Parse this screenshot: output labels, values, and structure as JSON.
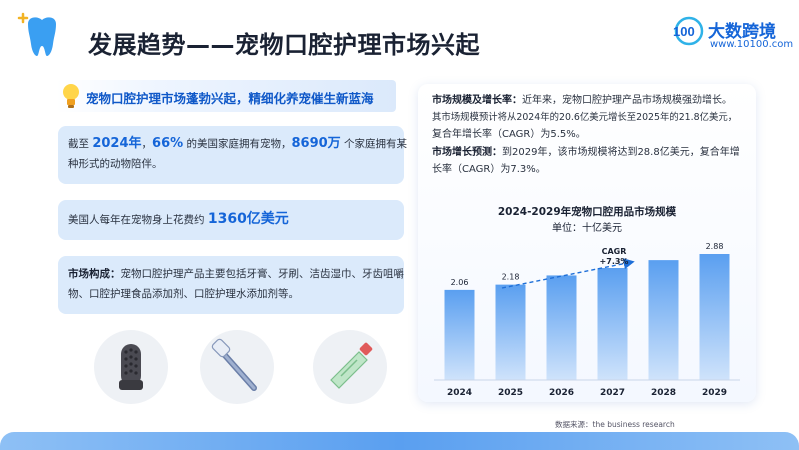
{
  "header": {
    "title": "发展趋势——宠物口腔护理市场兴起",
    "brand_name": "大数跨境",
    "brand_url": "www.10100.com",
    "brand_logo_text": "100"
  },
  "subtitle": "宠物口腔护理市场蓬勃兴起，精细化养宠催生新蓝海",
  "cards": {
    "pets": {
      "prefix": "截至 ",
      "year": "2024年",
      "sep": "，",
      "percent": "66%",
      "mid": " 的美国家庭拥有宠物，",
      "households": "8690万",
      "suffix1": " 个家庭拥有某",
      "line2": "种形式的动物陪伴。"
    },
    "spend": {
      "prefix": "美国人每年在宠物身上花费约 ",
      "amount": "1360亿美元"
    },
    "composition": {
      "label": "市场构成：",
      "text1": "宠物口腔护理产品主要包括牙膏、牙刷、洁齿湿巾、牙齿咀嚼",
      "text2": "物、口腔护理食品添加剂、口腔护理水添加剂等。"
    }
  },
  "products": [
    "finger-brush",
    "toothbrush",
    "toothpaste"
  ],
  "right_panel": {
    "size_label": "市场规模及增长率：",
    "size_text1": "近年来，宠物口腔护理产品市场规模强劲增长。",
    "size_text2": "其市场规模预计将从2024年的20.6亿美元增长至2025年的21.8亿美元，",
    "size_text3": "复合年增长率（CAGR）为5.5%。",
    "forecast_label": "市场增长预测：",
    "forecast_text1": "到2029年，该市场规模将达到28.8亿美元，复合年增",
    "forecast_text2": "长率（CAGR）为7.3%。",
    "source": "数据来源：the business research"
  },
  "chart_data": {
    "type": "bar",
    "title": "2024-2029年宠物口腔用品市场规模",
    "subtitle": "单位：十亿美元",
    "categories": [
      "2024",
      "2025",
      "2026",
      "2027",
      "2028",
      "2029"
    ],
    "values": [
      2.06,
      2.18,
      null,
      null,
      null,
      2.88
    ],
    "estimated_values": [
      2.06,
      2.18,
      2.39,
      2.56,
      2.74,
      2.88
    ],
    "data_labels": [
      "2.06",
      "2.18",
      "",
      "",
      "",
      "2.88"
    ],
    "annotation": {
      "line1": "CAGR",
      "line2": "+7.3%"
    },
    "ylim": [
      0,
      3.2
    ],
    "grid": false,
    "colors": {
      "bar_light": "#cfe3fb",
      "bar_dark": "#5a9ff0",
      "arrow": "#1e6fd8"
    }
  },
  "colors": {
    "accent": "#1565d8",
    "card_bg": "#dbeafb",
    "title": "#1a2233"
  }
}
